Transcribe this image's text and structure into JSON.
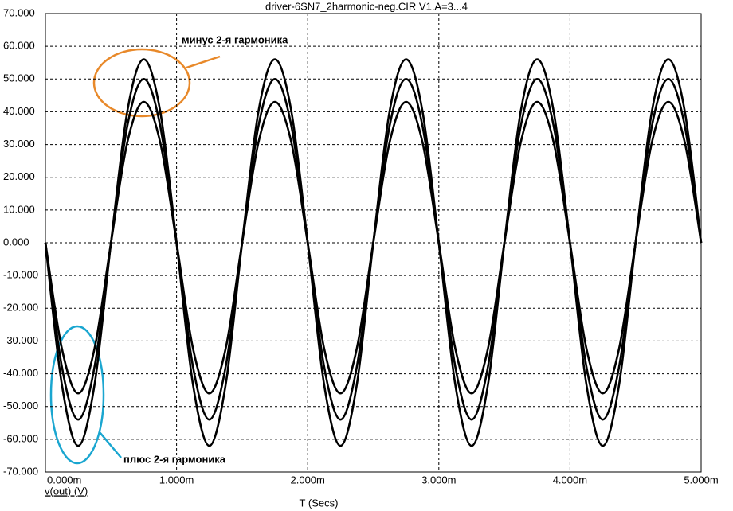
{
  "chart_data": {
    "type": "line",
    "title": "driver-6SN7_2harmonic-neg.CIR V1.A=3...4",
    "x_label": "T (Secs)",
    "y_label": "v(out) (V)",
    "annotations": [
      "минус 2-я гармоника",
      "плюс 2-я гармоника"
    ],
    "grid": true,
    "xlim": [
      0,
      0.005
    ],
    "ylim": [
      -70,
      70
    ],
    "xticks": [
      {
        "value": 0,
        "label": "0.000m"
      },
      {
        "value": 0.001,
        "label": "1.000m"
      },
      {
        "value": 0.002,
        "label": "2.000m"
      },
      {
        "value": 0.003,
        "label": "3.000m"
      },
      {
        "value": 0.004,
        "label": "4.000m"
      },
      {
        "value": 0.005,
        "label": "5.000m"
      }
    ],
    "yticks": [
      {
        "value": 70,
        "label": "70.000"
      },
      {
        "value": 60,
        "label": "60.000"
      },
      {
        "value": 50,
        "label": "50.000"
      },
      {
        "value": 40,
        "label": "40.000"
      },
      {
        "value": 30,
        "label": "30.000"
      },
      {
        "value": 20,
        "label": "20.000"
      },
      {
        "value": 10,
        "label": "10.000"
      },
      {
        "value": 0,
        "label": "0.000"
      },
      {
        "value": -10,
        "label": "-10.000"
      },
      {
        "value": -20,
        "label": "-20.000"
      },
      {
        "value": -30,
        "label": "-30.000"
      },
      {
        "value": -40,
        "label": "-40.000"
      },
      {
        "value": -50,
        "label": "-50.000"
      },
      {
        "value": -60,
        "label": "-60.000"
      },
      {
        "value": -70,
        "label": "-70.000"
      }
    ],
    "x": [
      0,
      0.000125,
      0.00025,
      0.000375,
      0.0005,
      0.000625,
      0.00075,
      0.000875,
      0.001,
      0.001125,
      0.00125,
      0.001375,
      0.0015,
      0.001625,
      0.00175,
      0.001875,
      0.002,
      0.002125,
      0.00225,
      0.002375,
      0.0025,
      0.002625,
      0.00275,
      0.002875,
      0.003,
      0.003125,
      0.00325,
      0.003375,
      0.0035,
      0.003625,
      0.00375,
      0.003875,
      0.004,
      0.004125,
      0.00425,
      0.004375,
      0.0045,
      0.004625,
      0.00475,
      0.004875,
      0.005
    ],
    "series": [
      {
        "color": "#000000",
        "values": [
          0,
          -43.22,
          -62,
          -43.22,
          0,
          40.22,
          56,
          40.22,
          0,
          -43.22,
          -62,
          -43.22,
          0,
          40.22,
          56,
          40.22,
          0,
          -43.22,
          -62,
          -43.22,
          0,
          40.22,
          56,
          40.22,
          0,
          -43.22,
          -62,
          -43.22,
          0,
          40.22,
          56,
          40.22,
          0,
          -43.22,
          -62,
          -43.22,
          0,
          40.22,
          56,
          40.22,
          0
        ]
      },
      {
        "color": "#000000",
        "values": [
          0,
          -37.77,
          -54,
          -37.77,
          0,
          35.77,
          50,
          35.77,
          0,
          -37.77,
          -54,
          -37.77,
          0,
          35.77,
          50,
          35.77,
          0,
          -37.77,
          -54,
          -37.77,
          0,
          35.77,
          50,
          35.77,
          0,
          -37.77,
          -54,
          -37.77,
          0,
          35.77,
          50,
          35.77,
          0,
          -37.77,
          -54,
          -37.77,
          0,
          35.77,
          50,
          35.77,
          0
        ]
      },
      {
        "color": "#000000",
        "values": [
          0,
          -32.22,
          -46,
          -32.22,
          0,
          30.72,
          43,
          30.72,
          0,
          -32.22,
          -46,
          -32.22,
          0,
          30.72,
          43,
          30.72,
          0,
          -32.22,
          -46,
          -32.22,
          0,
          30.72,
          43,
          30.72,
          0,
          -32.22,
          -46,
          -32.22,
          0,
          30.72,
          43,
          30.72,
          0,
          -32.22,
          -46,
          -32.22,
          0,
          30.72,
          43,
          30.72,
          0
        ]
      }
    ]
  }
}
